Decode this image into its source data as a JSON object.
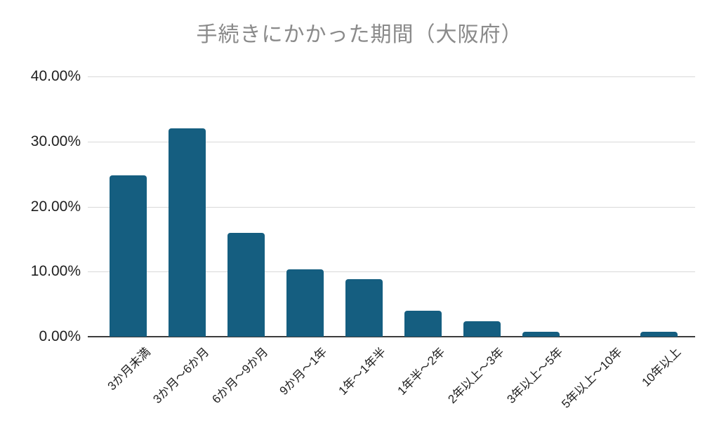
{
  "chart_data": {
    "type": "bar",
    "title": "手続きにかかった期間（大阪府）",
    "categories": [
      "3か月未満",
      "3か月～6か月",
      "6か月～9か月",
      "9か月～1年",
      "1年～1年半",
      "1年半～2年",
      "2年以上～3年",
      "3年以上～5年",
      "5年以上～10年",
      "10年以上"
    ],
    "values": [
      24.8,
      32.0,
      16.0,
      10.4,
      8.8,
      4.0,
      2.4,
      0.8,
      0.0,
      0.8
    ],
    "xlabel": "",
    "ylabel": "",
    "ylim": [
      0,
      40
    ],
    "y_ticks": [
      "40.00%",
      "30.00%",
      "20.00%",
      "10.00%",
      "0.00%"
    ],
    "grid": true,
    "legend": "none"
  },
  "style": {
    "bar_color": "#155e80",
    "grid_color": "#d9d9d9",
    "axis_color": "#3c3c3c",
    "title_color": "#8a8a8a",
    "tick_label_color": "#1f1f1f",
    "background": "#ffffff"
  }
}
